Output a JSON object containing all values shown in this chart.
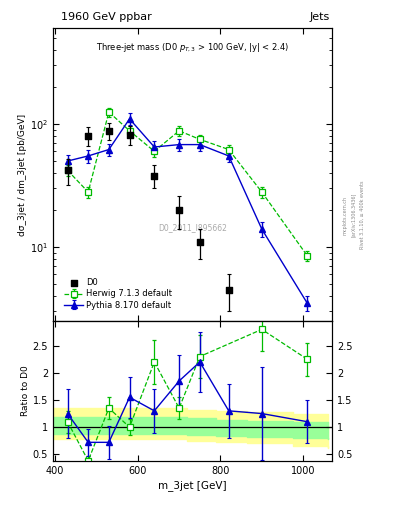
{
  "title_top": "1960 GeV ppbar",
  "title_right": "Jets",
  "subtitle": "Three-jet mass (D0 p_{T,3} > 100 GeV, |y| < 2.4)",
  "watermark": "D0_2011_I895662",
  "ylabel_main": "dσ_3jet / dm_3jet [pb/GeV]",
  "ylabel_ratio": "Ratio to D0",
  "xlabel": "m_3jet [GeV]",
  "right_label_1": "Rivet 3.1.10, ≥ 400k events",
  "right_label_2": "[arXiv:1306.3436]",
  "right_label_3": "mcplots.cern.ch",
  "d0_x": [
    430,
    480,
    530,
    580,
    640,
    700,
    750,
    820,
    900,
    1010
  ],
  "d0_y": [
    42,
    80,
    88,
    82,
    38,
    20,
    11,
    4.5,
    null,
    null
  ],
  "d0_yerr_lo": [
    10,
    14,
    14,
    14,
    8,
    6,
    3,
    1.5,
    null,
    null
  ],
  "d0_yerr_hi": [
    10,
    14,
    14,
    14,
    8,
    6,
    3,
    1.5,
    null,
    null
  ],
  "herwig_x": [
    430,
    480,
    530,
    580,
    640,
    700,
    750,
    820,
    900,
    1010
  ],
  "herwig_y": [
    42,
    28,
    125,
    88,
    60,
    88,
    75,
    62,
    28,
    8.5
  ],
  "herwig_yerr": [
    4,
    3,
    10,
    8,
    6,
    8,
    6,
    5,
    3,
    0.8
  ],
  "pythia_x": [
    430,
    480,
    530,
    580,
    640,
    700,
    750,
    820,
    900,
    1010
  ],
  "pythia_y": [
    50,
    55,
    62,
    110,
    65,
    68,
    68,
    55,
    14,
    3.5
  ],
  "pythia_yerr": [
    6,
    7,
    7,
    12,
    8,
    8,
    8,
    6,
    2,
    0.5
  ],
  "ratio_herwig_x": [
    430,
    480,
    530,
    580,
    640,
    700,
    750,
    820,
    900,
    1010
  ],
  "ratio_herwig_y": [
    1.1,
    0.38,
    1.35,
    1.0,
    2.2,
    1.35,
    2.3,
    null,
    2.8,
    2.25
  ],
  "ratio_herwig_yerr": [
    0.2,
    0.08,
    0.2,
    0.15,
    0.4,
    0.2,
    0.4,
    null,
    0.4,
    0.3
  ],
  "ratio_pythia_x": [
    430,
    480,
    530,
    580,
    640,
    700,
    750,
    820,
    900,
    1010
  ],
  "ratio_pythia_y": [
    1.25,
    0.72,
    0.72,
    1.55,
    1.3,
    1.85,
    2.2,
    1.3,
    1.25,
    1.1
  ],
  "ratio_pythia_yerr_lo": [
    0.45,
    0.25,
    0.3,
    0.38,
    0.4,
    0.48,
    0.55,
    0.5,
    0.85,
    0.4
  ],
  "ratio_pythia_yerr_hi": [
    0.45,
    0.25,
    0.3,
    0.38,
    0.4,
    0.48,
    0.55,
    0.5,
    0.85,
    0.4
  ],
  "band_x": [
    395,
    455,
    505,
    555,
    610,
    670,
    720,
    790,
    865,
    975,
    1060
  ],
  "band_yellow_lo": [
    0.78,
    0.78,
    0.78,
    0.78,
    0.78,
    0.78,
    0.75,
    0.72,
    0.7,
    0.65,
    0.62
  ],
  "band_yellow_hi": [
    1.35,
    1.35,
    1.35,
    1.35,
    1.35,
    1.35,
    1.32,
    1.3,
    1.28,
    1.25,
    1.22
  ],
  "band_green_lo": [
    0.88,
    0.88,
    0.88,
    0.88,
    0.88,
    0.88,
    0.86,
    0.84,
    0.82,
    0.8,
    0.78
  ],
  "band_green_hi": [
    1.18,
    1.18,
    1.18,
    1.18,
    1.18,
    1.18,
    1.16,
    1.14,
    1.12,
    1.1,
    1.08
  ],
  "d0_color": "black",
  "herwig_color": "#00bb00",
  "pythia_color": "#0000cc",
  "band_yellow_color": "#ffff99",
  "band_green_color": "#99ff99",
  "ylim_main": [
    2.5,
    600
  ],
  "xlim": [
    395,
    1070
  ],
  "yticks_ratio": [
    0.5,
    1.0,
    1.5,
    2.0,
    2.5
  ],
  "ytick_ratio_labels": [
    "0.5",
    "1",
    "1.5",
    "2",
    "2.5"
  ],
  "ylim_ratio": [
    0.38,
    2.95
  ]
}
